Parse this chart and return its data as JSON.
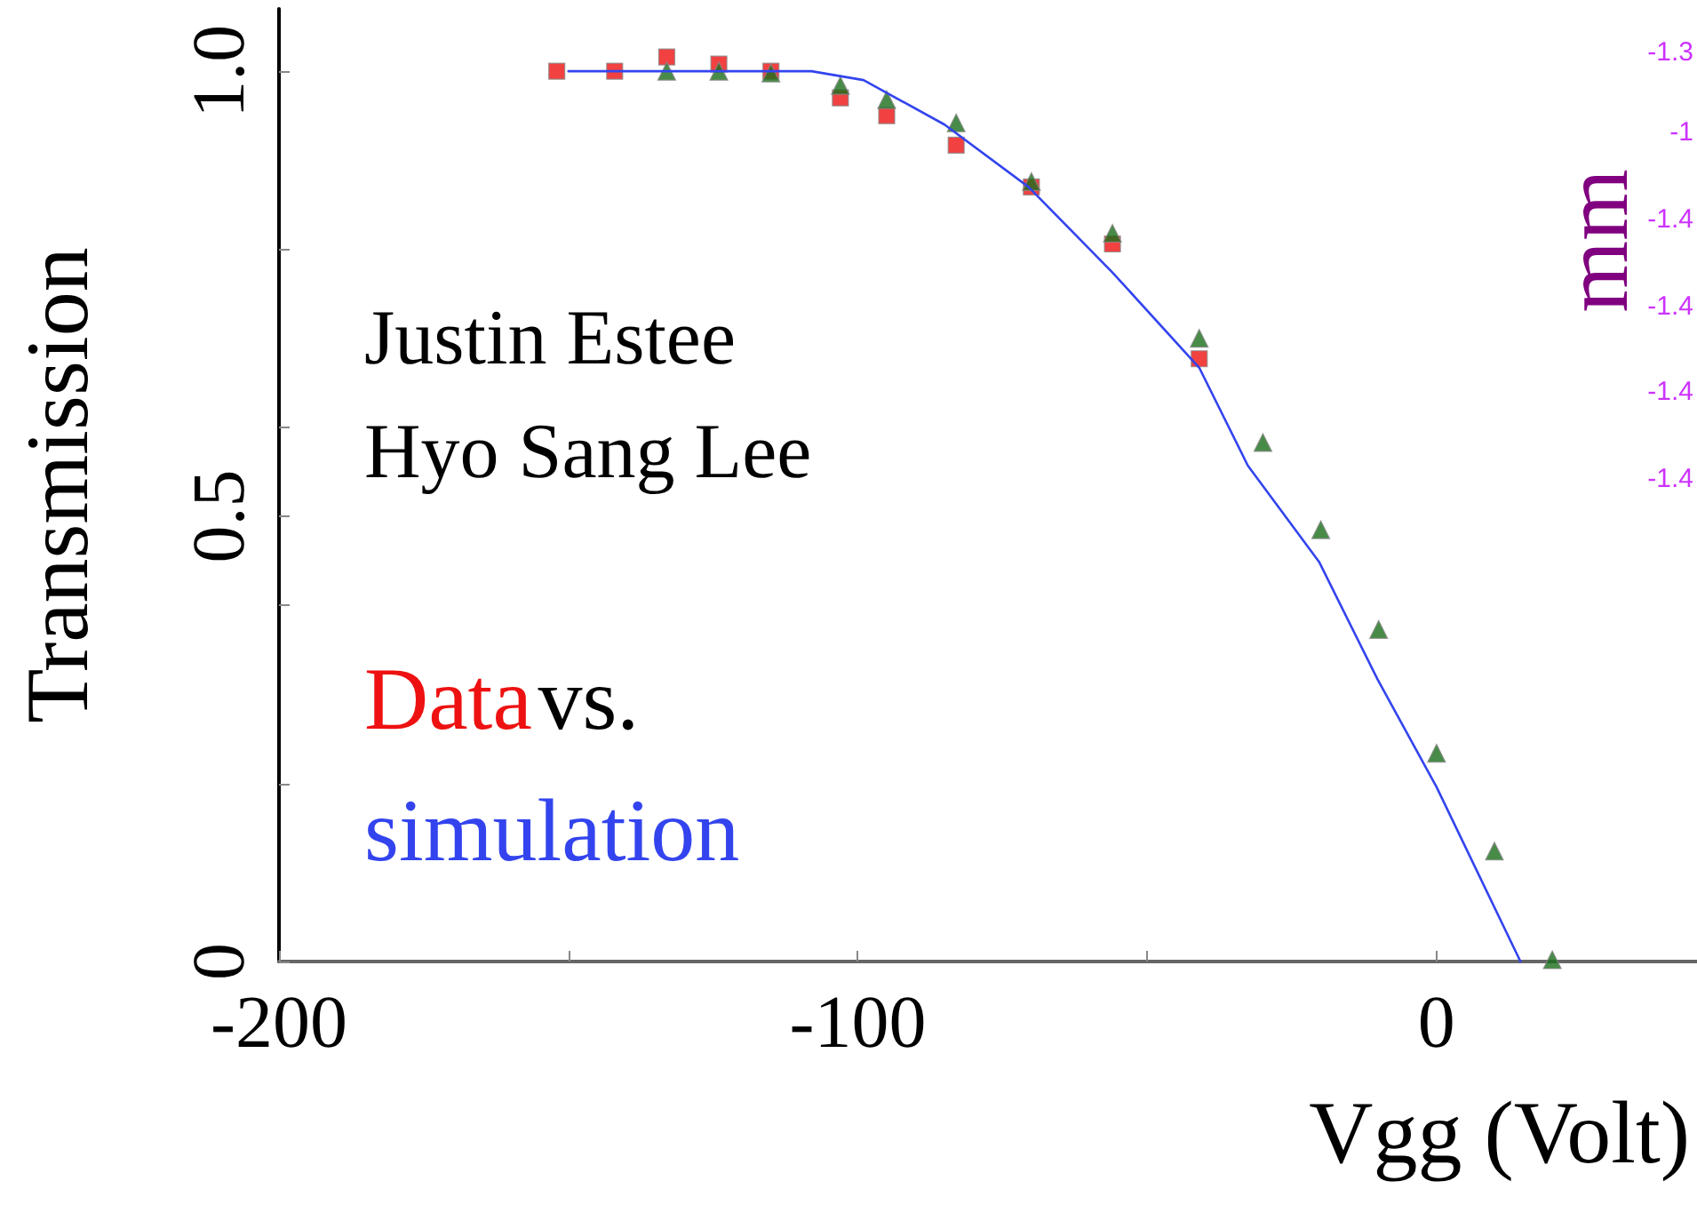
{
  "chart_data": {
    "type": "scatter",
    "xlabel": "Vgg (Volt)",
    "ylabel": "Transmission",
    "y2label": "mm",
    "xlim": [
      -200,
      45
    ],
    "xticks": [
      -200,
      {
        "value": -150,
        "label": null
      },
      -100,
      {
        "value": -50,
        "label": null
      },
      0
    ],
    "ylim": [
      0,
      1.07
    ],
    "yticks": [
      0,
      {
        "value": 0.2,
        "label": null
      },
      {
        "value": 0.4,
        "label": null
      },
      0.5,
      {
        "value": 0.6,
        "label": null
      },
      {
        "value": 0.8,
        "label": null
      },
      {
        "value": 1,
        "label": "1.0"
      }
    ],
    "grid": false,
    "series": [
      {
        "marker": "square",
        "color": "#ee1111",
        "x": [
          -152,
          -142,
          -133,
          -124,
          -115,
          -103,
          -95,
          -83,
          -70,
          -56,
          -41
        ],
        "values": [
          1.0,
          1.0,
          1.016,
          1.008,
          1.0,
          0.97,
          0.95,
          0.917,
          0.87,
          0.806,
          0.677
        ]
      },
      {
        "marker": "triangle",
        "color": "#1a6e1a",
        "x": [
          -133,
          -124,
          -115,
          -103,
          -95,
          -83,
          -70,
          -56,
          -41,
          -30,
          -20,
          -10,
          0,
          10,
          20
        ],
        "values": [
          1.0,
          1.0,
          0.998,
          0.984,
          0.968,
          0.942,
          0.876,
          0.818,
          0.7,
          0.583,
          0.485,
          0.373,
          0.234,
          0.124,
          0.002
        ]
      },
      {
        "type": "line",
        "marker": "none",
        "line_style": "solid",
        "color": "#3344ee",
        "x": [
          -150,
          -108,
          -99,
          -85,
          -70.5,
          -56,
          -41,
          -32.6,
          -20.3,
          -10.2,
          0,
          14.5
        ],
        "values": [
          1.0,
          1.0,
          0.99,
          0.94,
          0.87,
          0.774,
          0.667,
          0.557,
          0.449,
          0.317,
          0.196,
          0.0
        ]
      }
    ],
    "annotations": [
      "Justin Estee",
      "Hyo Sang Lee",
      "Data",
      "vs.",
      "simulation",
      "-1.3",
      "-1",
      "-1.4",
      "-1.4",
      "-1.4",
      "-1.4"
    ]
  }
}
